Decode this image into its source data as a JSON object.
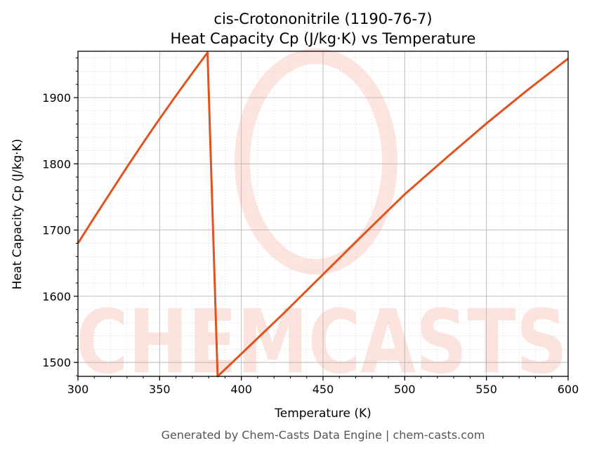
{
  "chart_data": {
    "type": "line",
    "title": "cis-Crotononitrile (1190-76-7)",
    "subtitle": "Heat Capacity Cp (J/kg·K) vs Temperature",
    "xlabel": "Temperature (K)",
    "ylabel": "Heat Capacity Cp (J/kg·K)",
    "xlim": [
      300,
      600
    ],
    "ylim": [
      1479,
      1970
    ],
    "xticks": [
      300,
      350,
      400,
      450,
      500,
      550,
      600
    ],
    "yticks": [
      1500,
      1600,
      1700,
      1800,
      1900
    ],
    "grid": true,
    "series": [
      {
        "name": "Cp",
        "color": "#e0531f",
        "x": [
          300,
          310,
          320,
          330,
          340,
          350,
          360,
          370,
          379.3,
          385.5,
          400,
          425,
          450,
          475,
          500,
          525,
          550,
          575,
          600
        ],
        "y": [
          1680,
          1719,
          1757,
          1795,
          1832,
          1868,
          1903,
          1937,
          1968,
          1479,
          1513,
          1572,
          1633,
          1694,
          1754,
          1808,
          1861,
          1911,
          1959
        ]
      }
    ],
    "watermark": "CHEMCASTS"
  },
  "footer": "Generated by Chem-Casts Data Engine | chem-casts.com"
}
